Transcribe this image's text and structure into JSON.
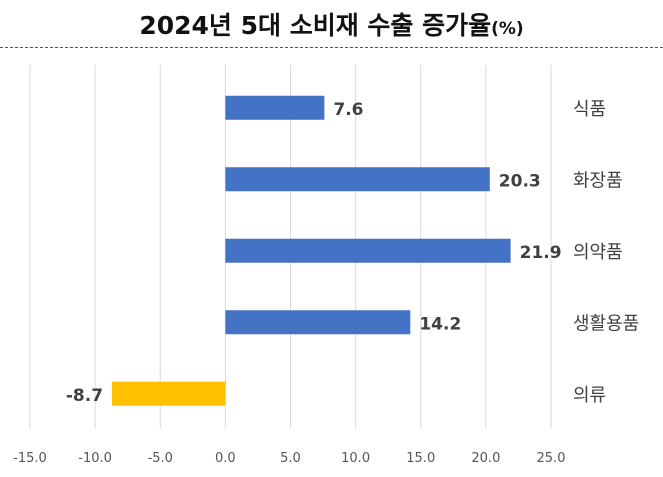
{
  "chart_data": {
    "type": "bar",
    "orientation": "horizontal",
    "title": "2024년 5대 소비재 수출 증가율",
    "title_unit": "(%)",
    "categories": [
      "식품",
      "화장품",
      "의약품",
      "생활용품",
      "의류"
    ],
    "values": [
      7.6,
      20.3,
      21.9,
      14.2,
      -8.7
    ],
    "value_labels": [
      "7.6",
      "20.3",
      "21.9",
      "14.2",
      "-8.7"
    ],
    "xlim": [
      -15.0,
      25.0
    ],
    "x_ticks": [
      "-15.0",
      "-10.0",
      "-5.0",
      "0.0",
      "5.0",
      "10.0",
      "15.0",
      "20.0",
      "25.0"
    ],
    "grid": "vertical",
    "legend": "none",
    "colors": {
      "positive": "#4472C4",
      "negative": "#FFC000",
      "grid": "#d9d9d9"
    }
  }
}
